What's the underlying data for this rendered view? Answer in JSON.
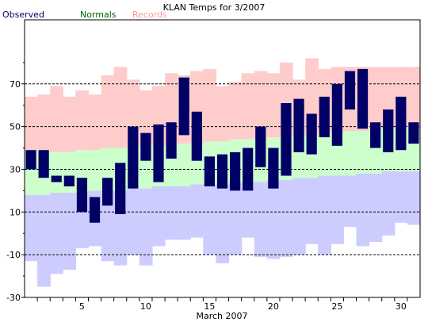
{
  "chart_data": {
    "type": "bar",
    "title": "KLAN Temps for 3/2007",
    "xlabel": "March 2007",
    "ylabel": "",
    "xlim": [
      1,
      31
    ],
    "ylim": [
      -30,
      100
    ],
    "yticks": [
      -30,
      -10,
      10,
      30,
      50,
      70
    ],
    "xticks": [
      5,
      10,
      15,
      20,
      25,
      30
    ],
    "grid": "dotted horizontal at y ticks",
    "legend": {
      "placement": "top-left",
      "entries": [
        {
          "name": "Observed",
          "color": "#000066"
        },
        {
          "name": "Normals",
          "color": "#006600"
        },
        {
          "name": "Records",
          "color": "#ff9999"
        }
      ]
    },
    "colors": {
      "observed": "#000066",
      "normals": "#ccffcc",
      "records": "#ffcccc",
      "lower_band": "#ccccff"
    },
    "days": [
      1,
      2,
      3,
      4,
      5,
      6,
      7,
      8,
      9,
      10,
      11,
      12,
      13,
      14,
      15,
      16,
      17,
      18,
      19,
      20,
      21,
      22,
      23,
      24,
      25,
      26,
      27,
      28,
      29,
      30,
      31
    ],
    "records_high": [
      64,
      65,
      69,
      64,
      67,
      65,
      74,
      78,
      72,
      67,
      69,
      75,
      74,
      76,
      77,
      69,
      71,
      75,
      76,
      75,
      80,
      72,
      82,
      77,
      78,
      78,
      78,
      78,
      78,
      78,
      78
    ],
    "records_low": [
      -13,
      -25,
      -19,
      -17,
      -7,
      -6,
      -13,
      -15,
      -10,
      -15,
      -6,
      -3,
      -3,
      -2,
      -10,
      -14,
      -10,
      -2,
      -11,
      -12,
      -11,
      -10,
      -5,
      -10,
      -5,
      3,
      -6,
      -4,
      -1,
      5,
      4
    ],
    "normal_high": [
      39,
      39,
      38,
      38,
      39,
      39,
      40,
      40,
      41,
      41,
      41,
      41,
      42,
      42,
      43,
      43,
      44,
      44,
      44,
      45,
      45,
      46,
      46,
      47,
      47,
      48,
      48,
      49,
      49,
      50,
      50
    ],
    "normal_low": [
      18,
      18,
      19,
      19,
      19,
      20,
      20,
      20,
      21,
      21,
      22,
      22,
      22,
      23,
      23,
      23,
      24,
      24,
      24,
      25,
      25,
      26,
      26,
      27,
      27,
      27,
      28,
      28,
      29,
      29,
      29
    ],
    "observed_high": [
      39,
      39,
      27,
      27,
      26,
      17,
      26,
      33,
      50,
      47,
      51,
      52,
      73,
      57,
      36,
      37,
      38,
      40,
      50,
      40,
      61,
      63,
      56,
      64,
      70,
      76,
      77,
      52,
      58,
      64,
      52
    ],
    "observed_low": [
      30,
      26,
      24,
      22,
      10,
      5,
      13,
      9,
      21,
      34,
      24,
      35,
      46,
      34,
      22,
      21,
      20,
      20,
      31,
      21,
      27,
      38,
      37,
      45,
      41,
      58,
      49,
      40,
      38,
      39,
      42
    ]
  }
}
